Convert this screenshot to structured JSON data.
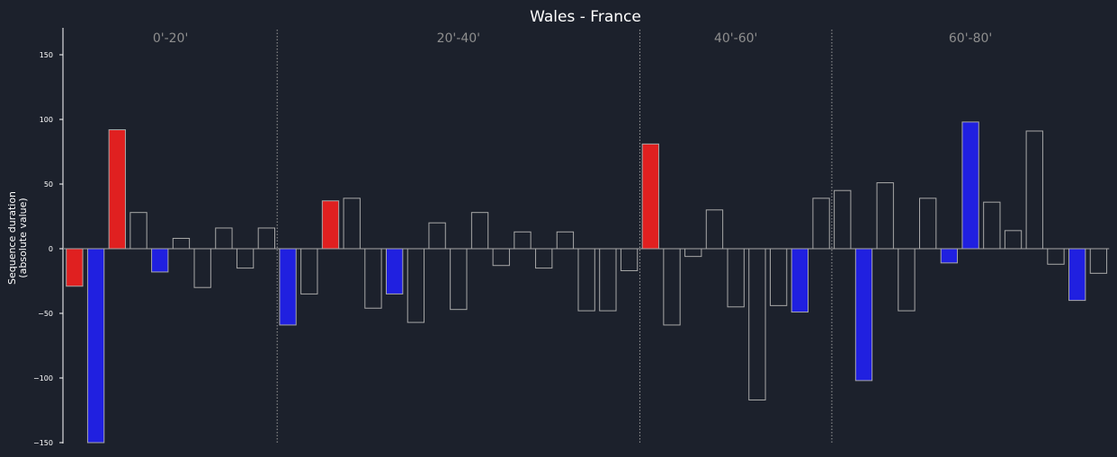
{
  "chart_data": {
    "type": "bar",
    "title": "Wales - France",
    "ylabel_line1": "Sequence duration",
    "ylabel_line2": "(absolute value)",
    "ylim": [
      -150,
      170
    ],
    "yticks": [
      -150,
      -100,
      -50,
      0,
      50,
      100,
      150
    ],
    "grid": false,
    "periods": [
      "0'-20'",
      "20'-40'",
      "40'-60'",
      "60'-80'"
    ],
    "period_separators_after_bar": [
      9,
      26,
      35
    ],
    "colors": {
      "background": "#1c212c",
      "outline": "#a8a8a8",
      "neutral_fill": "#1c212c",
      "wales": "#e02020",
      "france": "#2020e0",
      "axis": "#ffffff",
      "separator": "#9a9a9a",
      "period_text": "#8e8e8e"
    },
    "bars": [
      {
        "value": -29,
        "team": "wales"
      },
      {
        "value": -150,
        "team": "france"
      },
      {
        "value": 92,
        "team": "wales"
      },
      {
        "value": 28,
        "team": "none"
      },
      {
        "value": -18,
        "team": "france"
      },
      {
        "value": 8,
        "team": "none"
      },
      {
        "value": -30,
        "team": "none"
      },
      {
        "value": 16,
        "team": "none"
      },
      {
        "value": -15,
        "team": "none"
      },
      {
        "value": 16,
        "team": "none"
      },
      {
        "value": -59,
        "team": "france"
      },
      {
        "value": -35,
        "team": "none"
      },
      {
        "value": 37,
        "team": "wales"
      },
      {
        "value": 39,
        "team": "none"
      },
      {
        "value": -46,
        "team": "none"
      },
      {
        "value": -35,
        "team": "france"
      },
      {
        "value": -57,
        "team": "none"
      },
      {
        "value": 20,
        "team": "none"
      },
      {
        "value": -47,
        "team": "none"
      },
      {
        "value": 28,
        "team": "none"
      },
      {
        "value": -13,
        "team": "none"
      },
      {
        "value": 13,
        "team": "none"
      },
      {
        "value": -15,
        "team": "none"
      },
      {
        "value": 13,
        "team": "none"
      },
      {
        "value": -48,
        "team": "none"
      },
      {
        "value": -48,
        "team": "none"
      },
      {
        "value": -17,
        "team": "none"
      },
      {
        "value": 81,
        "team": "wales"
      },
      {
        "value": -59,
        "team": "none"
      },
      {
        "value": -6,
        "team": "none"
      },
      {
        "value": 30,
        "team": "none"
      },
      {
        "value": -45,
        "team": "none"
      },
      {
        "value": -117,
        "team": "none"
      },
      {
        "value": -44,
        "team": "none"
      },
      {
        "value": -49,
        "team": "france"
      },
      {
        "value": 39,
        "team": "none"
      },
      {
        "value": 45,
        "team": "none"
      },
      {
        "value": -102,
        "team": "france"
      },
      {
        "value": 51,
        "team": "none"
      },
      {
        "value": -48,
        "team": "none"
      },
      {
        "value": 39,
        "team": "none"
      },
      {
        "value": -11,
        "team": "france"
      },
      {
        "value": 98,
        "team": "france"
      },
      {
        "value": 36,
        "team": "none"
      },
      {
        "value": 14,
        "team": "none"
      },
      {
        "value": 91,
        "team": "none"
      },
      {
        "value": -12,
        "team": "none"
      },
      {
        "value": -40,
        "team": "france"
      },
      {
        "value": -19,
        "team": "none"
      }
    ]
  }
}
